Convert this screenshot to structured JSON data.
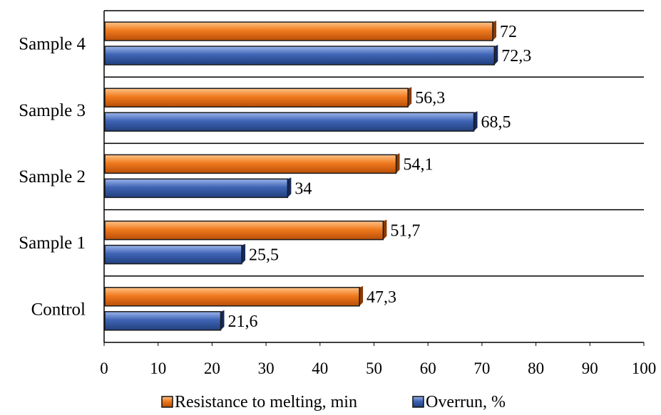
{
  "chart_data": {
    "type": "bar",
    "orientation": "horizontal",
    "categories": [
      "Control",
      "Sample 1",
      "Sample 2",
      "Sample 3",
      "Sample 4"
    ],
    "series": [
      {
        "name": "Resistance to melting, min",
        "values": [
          47.3,
          51.7,
          54.1,
          56.3,
          72
        ],
        "labels": [
          "47,3",
          "51,7",
          "54,1",
          "56,3",
          "72"
        ],
        "color": "#F07A1E"
      },
      {
        "name": "Overrun, %",
        "values": [
          21.6,
          25.5,
          34,
          68.5,
          72.3
        ],
        "labels": [
          "21,6",
          "25,5",
          "34",
          "68,5",
          "72,3"
        ],
        "color": "#3F64B5"
      }
    ],
    "xlim": [
      0,
      100
    ],
    "xticks": [
      0,
      10,
      20,
      30,
      40,
      50,
      60,
      70,
      80,
      90,
      100
    ],
    "title": "",
    "xlabel": "",
    "ylabel": "",
    "grid": "horizontal category separators",
    "legend": "bottom"
  }
}
